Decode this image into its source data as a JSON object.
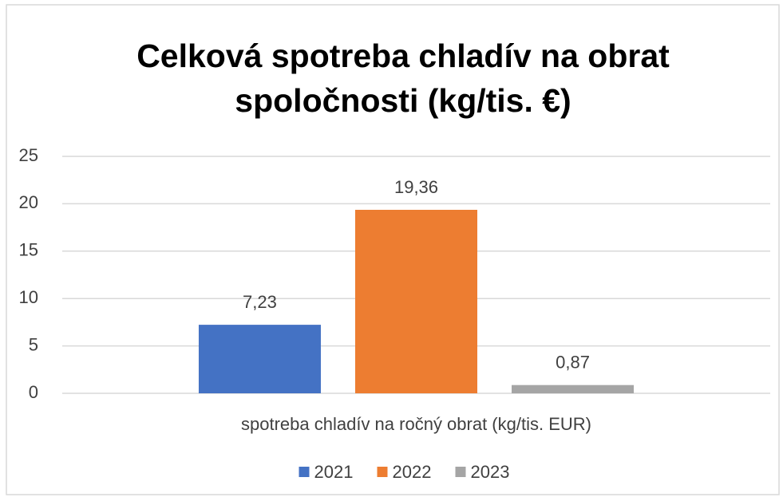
{
  "chart_data": {
    "type": "bar",
    "title": "Celková spotreba chladív na obrat spoločnosti (kg/tis. €)",
    "categories": [
      "spotreba chladív na ročný obrat (kg/tis. EUR)"
    ],
    "series": [
      {
        "name": "2021",
        "color": "#4472c4",
        "values": [
          7.23
        ],
        "value_labels": [
          "7,23"
        ]
      },
      {
        "name": "2022",
        "color": "#ed7d31",
        "values": [
          19.36
        ],
        "value_labels": [
          "19,36"
        ]
      },
      {
        "name": "2023",
        "color": "#a5a5a5",
        "values": [
          0.87
        ],
        "value_labels": [
          "0,87"
        ]
      }
    ],
    "ylim": [
      0,
      25
    ],
    "yticks": [
      0,
      5,
      10,
      15,
      20,
      25
    ],
    "grid": true,
    "legend": "bottom"
  }
}
